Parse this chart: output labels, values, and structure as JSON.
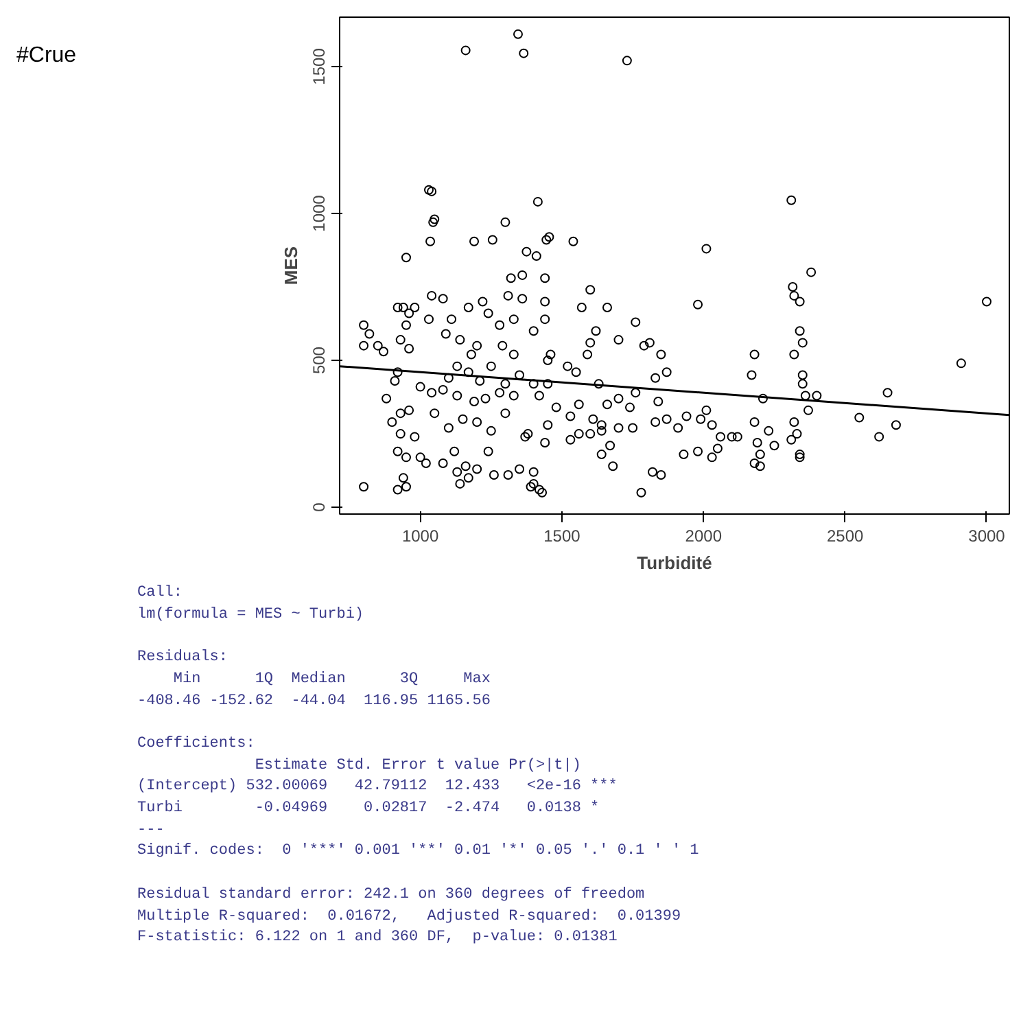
{
  "chart_data": {
    "type": "scatter",
    "title": "#Crue",
    "xlabel": "Turbidité",
    "ylabel": "MES",
    "xlim": [
      715,
      3080
    ],
    "ylim": [
      -23,
      1668
    ],
    "xticks": [
      1000,
      1500,
      2000,
      2500,
      3000
    ],
    "yticks": [
      0,
      500,
      1000,
      1500
    ],
    "grid": false,
    "series": [
      {
        "color": "#000000",
        "marker": "circle",
        "x": [
          1160,
          1345,
          1365,
          1730,
          1030,
          1040,
          1045,
          1050,
          1035,
          1190,
          1255,
          1300,
          1415,
          1375,
          1410,
          1455,
          1445,
          1540,
          950,
          2010,
          2310,
          2315,
          2320,
          2340,
          2380,
          1980,
          3000,
          2910,
          2650,
          2550,
          2620,
          2680,
          800,
          820,
          800,
          870,
          850,
          920,
          940,
          960,
          980,
          950,
          930,
          960,
          1040,
          1080,
          1030,
          1110,
          1090,
          1170,
          1220,
          1240,
          1320,
          1360,
          1310,
          1360,
          1440,
          1440,
          1440,
          1600,
          1570,
          1660,
          1620,
          1600,
          1590,
          1700,
          1760,
          1810,
          1790,
          1850,
          1870,
          1830,
          1140,
          1200,
          1180,
          1280,
          1290,
          1330,
          1400,
          1330,
          1460,
          1450,
          1130,
          1170,
          1100,
          1210,
          1250,
          1300,
          1350,
          1400,
          1450,
          1520,
          1550,
          920,
          910,
          1000,
          1040,
          1080,
          1130,
          1190,
          1230,
          1280,
          1330,
          1420,
          1480,
          1530,
          1560,
          1610,
          1640,
          1660,
          1630,
          1700,
          1740,
          1760,
          1840,
          880,
          930,
          960,
          900,
          1050,
          1100,
          1150,
          1200,
          1250,
          1300,
          1380,
          1440,
          1450,
          1530,
          1560,
          1600,
          1640,
          1700,
          1750,
          1830,
          1870,
          1910,
          1940,
          1990,
          2010,
          2030,
          2060,
          2100,
          2120,
          2170,
          2180,
          2180,
          2190,
          2230,
          2250,
          2210,
          2320,
          2330,
          2310,
          2340,
          2350,
          2350,
          2360,
          2400,
          2370,
          2320,
          2340,
          2350,
          930,
          980,
          920,
          950,
          1000,
          1020,
          1080,
          1120,
          1130,
          1160,
          1200,
          1240,
          1260,
          1310,
          1350,
          1370,
          1400,
          1420,
          1400,
          1430,
          1390,
          1640,
          1680,
          1670,
          1780,
          1820,
          1850,
          1930,
          1980,
          2030,
          2050,
          2180,
          2200,
          2200,
          2340,
          800,
          920,
          950,
          940,
          1140,
          1170
        ],
        "values": [
          1555,
          1610,
          1545,
          1520,
          1080,
          1075,
          970,
          980,
          905,
          905,
          910,
          970,
          1040,
          870,
          855,
          920,
          910,
          905,
          850,
          880,
          1045,
          750,
          720,
          700,
          800,
          690,
          700,
          490,
          390,
          305,
          240,
          280,
          620,
          590,
          550,
          530,
          550,
          680,
          680,
          660,
          680,
          620,
          570,
          540,
          720,
          710,
          640,
          640,
          590,
          680,
          700,
          660,
          780,
          790,
          720,
          710,
          780,
          700,
          640,
          740,
          680,
          680,
          600,
          560,
          520,
          570,
          630,
          560,
          550,
          520,
          460,
          440,
          570,
          550,
          520,
          620,
          550,
          640,
          600,
          520,
          520,
          500,
          480,
          460,
          440,
          430,
          480,
          420,
          450,
          420,
          420,
          480,
          460,
          460,
          430,
          410,
          390,
          400,
          380,
          360,
          370,
          390,
          380,
          380,
          340,
          310,
          350,
          300,
          280,
          350,
          420,
          370,
          340,
          390,
          360,
          370,
          320,
          330,
          290,
          320,
          270,
          300,
          290,
          260,
          320,
          250,
          220,
          280,
          230,
          250,
          250,
          260,
          270,
          270,
          290,
          300,
          270,
          310,
          300,
          330,
          280,
          240,
          240,
          240,
          450,
          520,
          290,
          220,
          260,
          210,
          370,
          290,
          250,
          230,
          180,
          450,
          420,
          380,
          380,
          330,
          520,
          600,
          560,
          250,
          240,
          190,
          170,
          170,
          150,
          150,
          190,
          120,
          140,
          130,
          190,
          110,
          110,
          130,
          240,
          120,
          60,
          80,
          50,
          70,
          180,
          140,
          210,
          50,
          120,
          110,
          180,
          190,
          170,
          200,
          150,
          140,
          180,
          170,
          70,
          60,
          70,
          100,
          80,
          100
        ]
      },
      {
        "type": "line",
        "color": "#000000",
        "x": [
          715,
          3080
        ],
        "values": [
          480,
          314
        ]
      }
    ],
    "annotations": [
      "Call:\nlm(formula = MES ~ Turbi)",
      "Residuals:\n    Min      1Q  Median      3Q     Max\n-408.46 -152.62  -44.04  116.95 1165.56",
      "Coefficients:\n             Estimate Std. Error t value Pr(>|t|)\n(Intercept) 532.00069   42.79112  12.433   <2e-16 ***\nTurbi        -0.04969    0.02817  -2.474   0.0138 *\n---\nSignif. codes:  0 '***' 0.001 '**' 0.01 '*' 0.05 '.' 0.1 ' ' 1",
      "Residual standard error: 242.1 on 360 degrees of freedom\nMultiple R-squared:  0.01672,   Adjusted R-squared:  0.01399\nF-statistic: 6.122 on 1 and 360 DF,  p-value: 0.01381"
    ]
  }
}
